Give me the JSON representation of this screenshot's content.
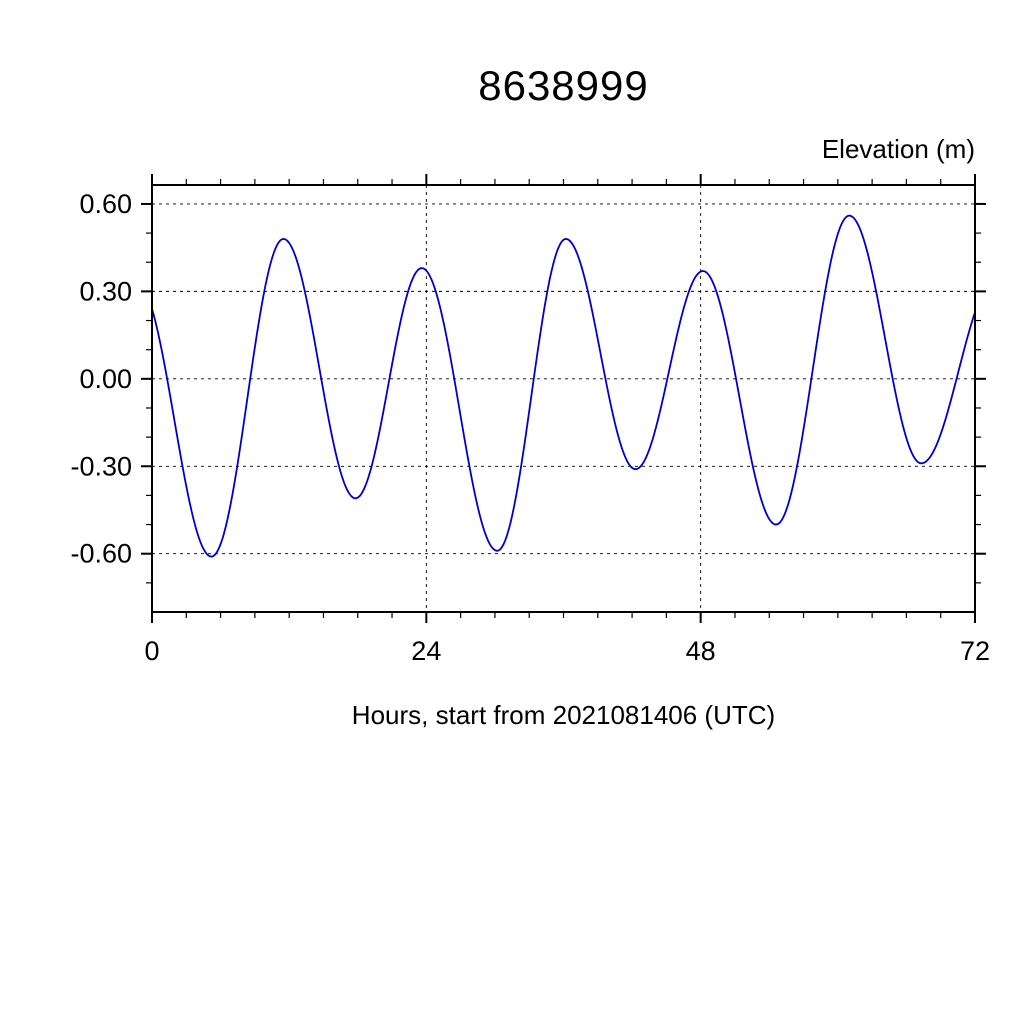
{
  "title": "8638999",
  "chart_data": {
    "type": "line",
    "title": "8638999",
    "ylabel": "Elevation (m)",
    "xlabel": "Hours, start from 2021081406 (UTC)",
    "xlim": [
      0,
      72
    ],
    "ylim": [
      -0.8,
      0.665
    ],
    "grid": "dashed at major ticks",
    "grid_x": [
      24,
      48
    ],
    "xticks": [
      {
        "value": 0,
        "label": "0"
      },
      {
        "value": 24,
        "label": "24"
      },
      {
        "value": 48,
        "label": "48"
      },
      {
        "value": 72,
        "label": "72"
      }
    ],
    "xtick_minor_step": 3,
    "yticks": [
      {
        "value": 0.6,
        "label": "0.60"
      },
      {
        "value": 0.3,
        "label": "0.30"
      },
      {
        "value": 0.0,
        "label": "0.00"
      },
      {
        "value": -0.3,
        "label": "-0.30"
      },
      {
        "value": -0.6,
        "label": "-0.60"
      }
    ],
    "ytick_minor_step": 0.1,
    "series": [
      {
        "name": "tide-elevation",
        "color": "#0000cc",
        "interpolation": "piecewise-cosine-between-extrema",
        "keypoints": [
          [
            -1.3,
            0.33
          ],
          [
            5.2,
            -0.61
          ],
          [
            11.5,
            0.48
          ],
          [
            17.8,
            -0.41
          ],
          [
            23.6,
            0.38
          ],
          [
            30.2,
            -0.59
          ],
          [
            36.2,
            0.48
          ],
          [
            42.3,
            -0.31
          ],
          [
            48.2,
            0.37
          ],
          [
            54.6,
            -0.5
          ],
          [
            61.0,
            0.56
          ],
          [
            67.3,
            -0.29
          ],
          [
            73.8,
            0.34
          ]
        ]
      }
    ]
  }
}
